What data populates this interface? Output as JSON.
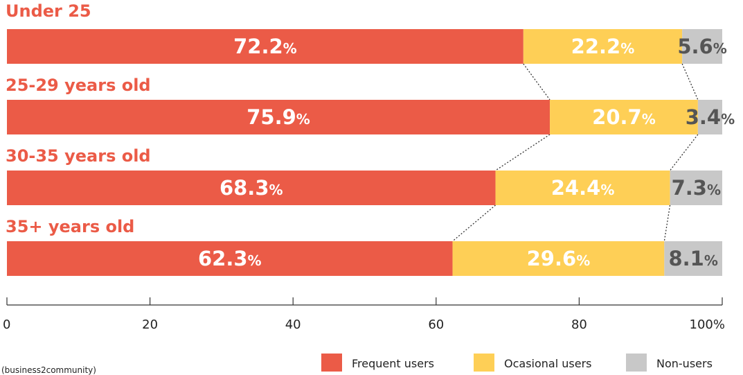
{
  "chart_data": {
    "type": "bar",
    "orientation": "horizontal",
    "stacked": true,
    "categories": [
      "Under 25",
      "25-29 years old",
      "30-35 years old",
      "35+ years old"
    ],
    "series": [
      {
        "name": "Frequent users",
        "color": "#eb5b47",
        "label_color": "#ffffff",
        "values": [
          72.2,
          75.9,
          68.3,
          62.3
        ]
      },
      {
        "name": "Ocasional users",
        "color": "#fecf56",
        "label_color": "#ffffff",
        "values": [
          22.2,
          20.7,
          24.4,
          29.6
        ]
      },
      {
        "name": "Non-users",
        "color": "#c8c8c8",
        "label_color": "#555555",
        "values": [
          5.6,
          3.4,
          7.3,
          8.1
        ]
      }
    ],
    "value_suffix": "%",
    "xlim": [
      0,
      100
    ],
    "x_ticks": [
      0,
      20,
      40,
      60,
      80,
      100
    ],
    "x_tick_labels": [
      "0",
      "20",
      "40",
      "60",
      "80",
      "100%"
    ],
    "category_label_color": "#eb5b47",
    "connectors": "dotted",
    "legend_position": "bottom-right",
    "source": "(business2community)"
  }
}
